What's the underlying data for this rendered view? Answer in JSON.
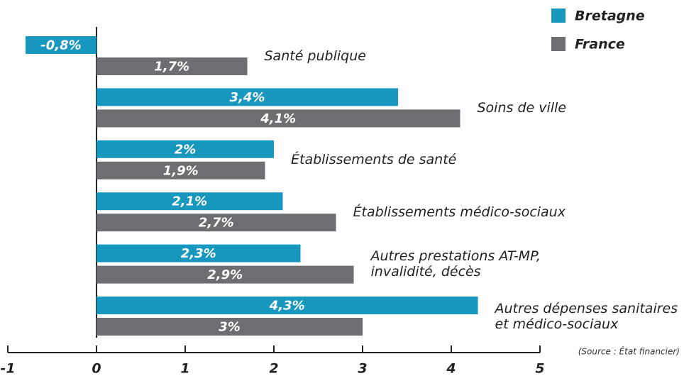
{
  "chart_data": {
    "type": "bar",
    "orientation": "horizontal",
    "categories": [
      "Santé publique",
      "Soins de ville",
      "Établissements de santé",
      "Établissements médico-sociaux",
      "Autres prestations AT-MP,\ninvalidité, décès",
      "Autres dépenses sanitaires\net médico-sociaux"
    ],
    "series": [
      {
        "name": "Bretagne",
        "color": "#1897bf",
        "values": [
          -0.8,
          3.4,
          2,
          2.1,
          2.3,
          4.3
        ],
        "value_labels": [
          "-0,8%",
          "3,4%",
          "2%",
          "2,1%",
          "2,3%",
          "4,3%"
        ]
      },
      {
        "name": "France",
        "color": "#6d6e71",
        "values": [
          1.7,
          4.1,
          1.9,
          2.7,
          2.9,
          3
        ],
        "value_labels": [
          "1,7%",
          "4,1%",
          "1,9%",
          "2,7%",
          "2,9%",
          "3%"
        ]
      }
    ],
    "xlim": [
      -1,
      5
    ],
    "xticks": [
      -1,
      0,
      1,
      2,
      3,
      4,
      5
    ],
    "legend": "top-right",
    "annotation": "(Source : État financier)"
  }
}
